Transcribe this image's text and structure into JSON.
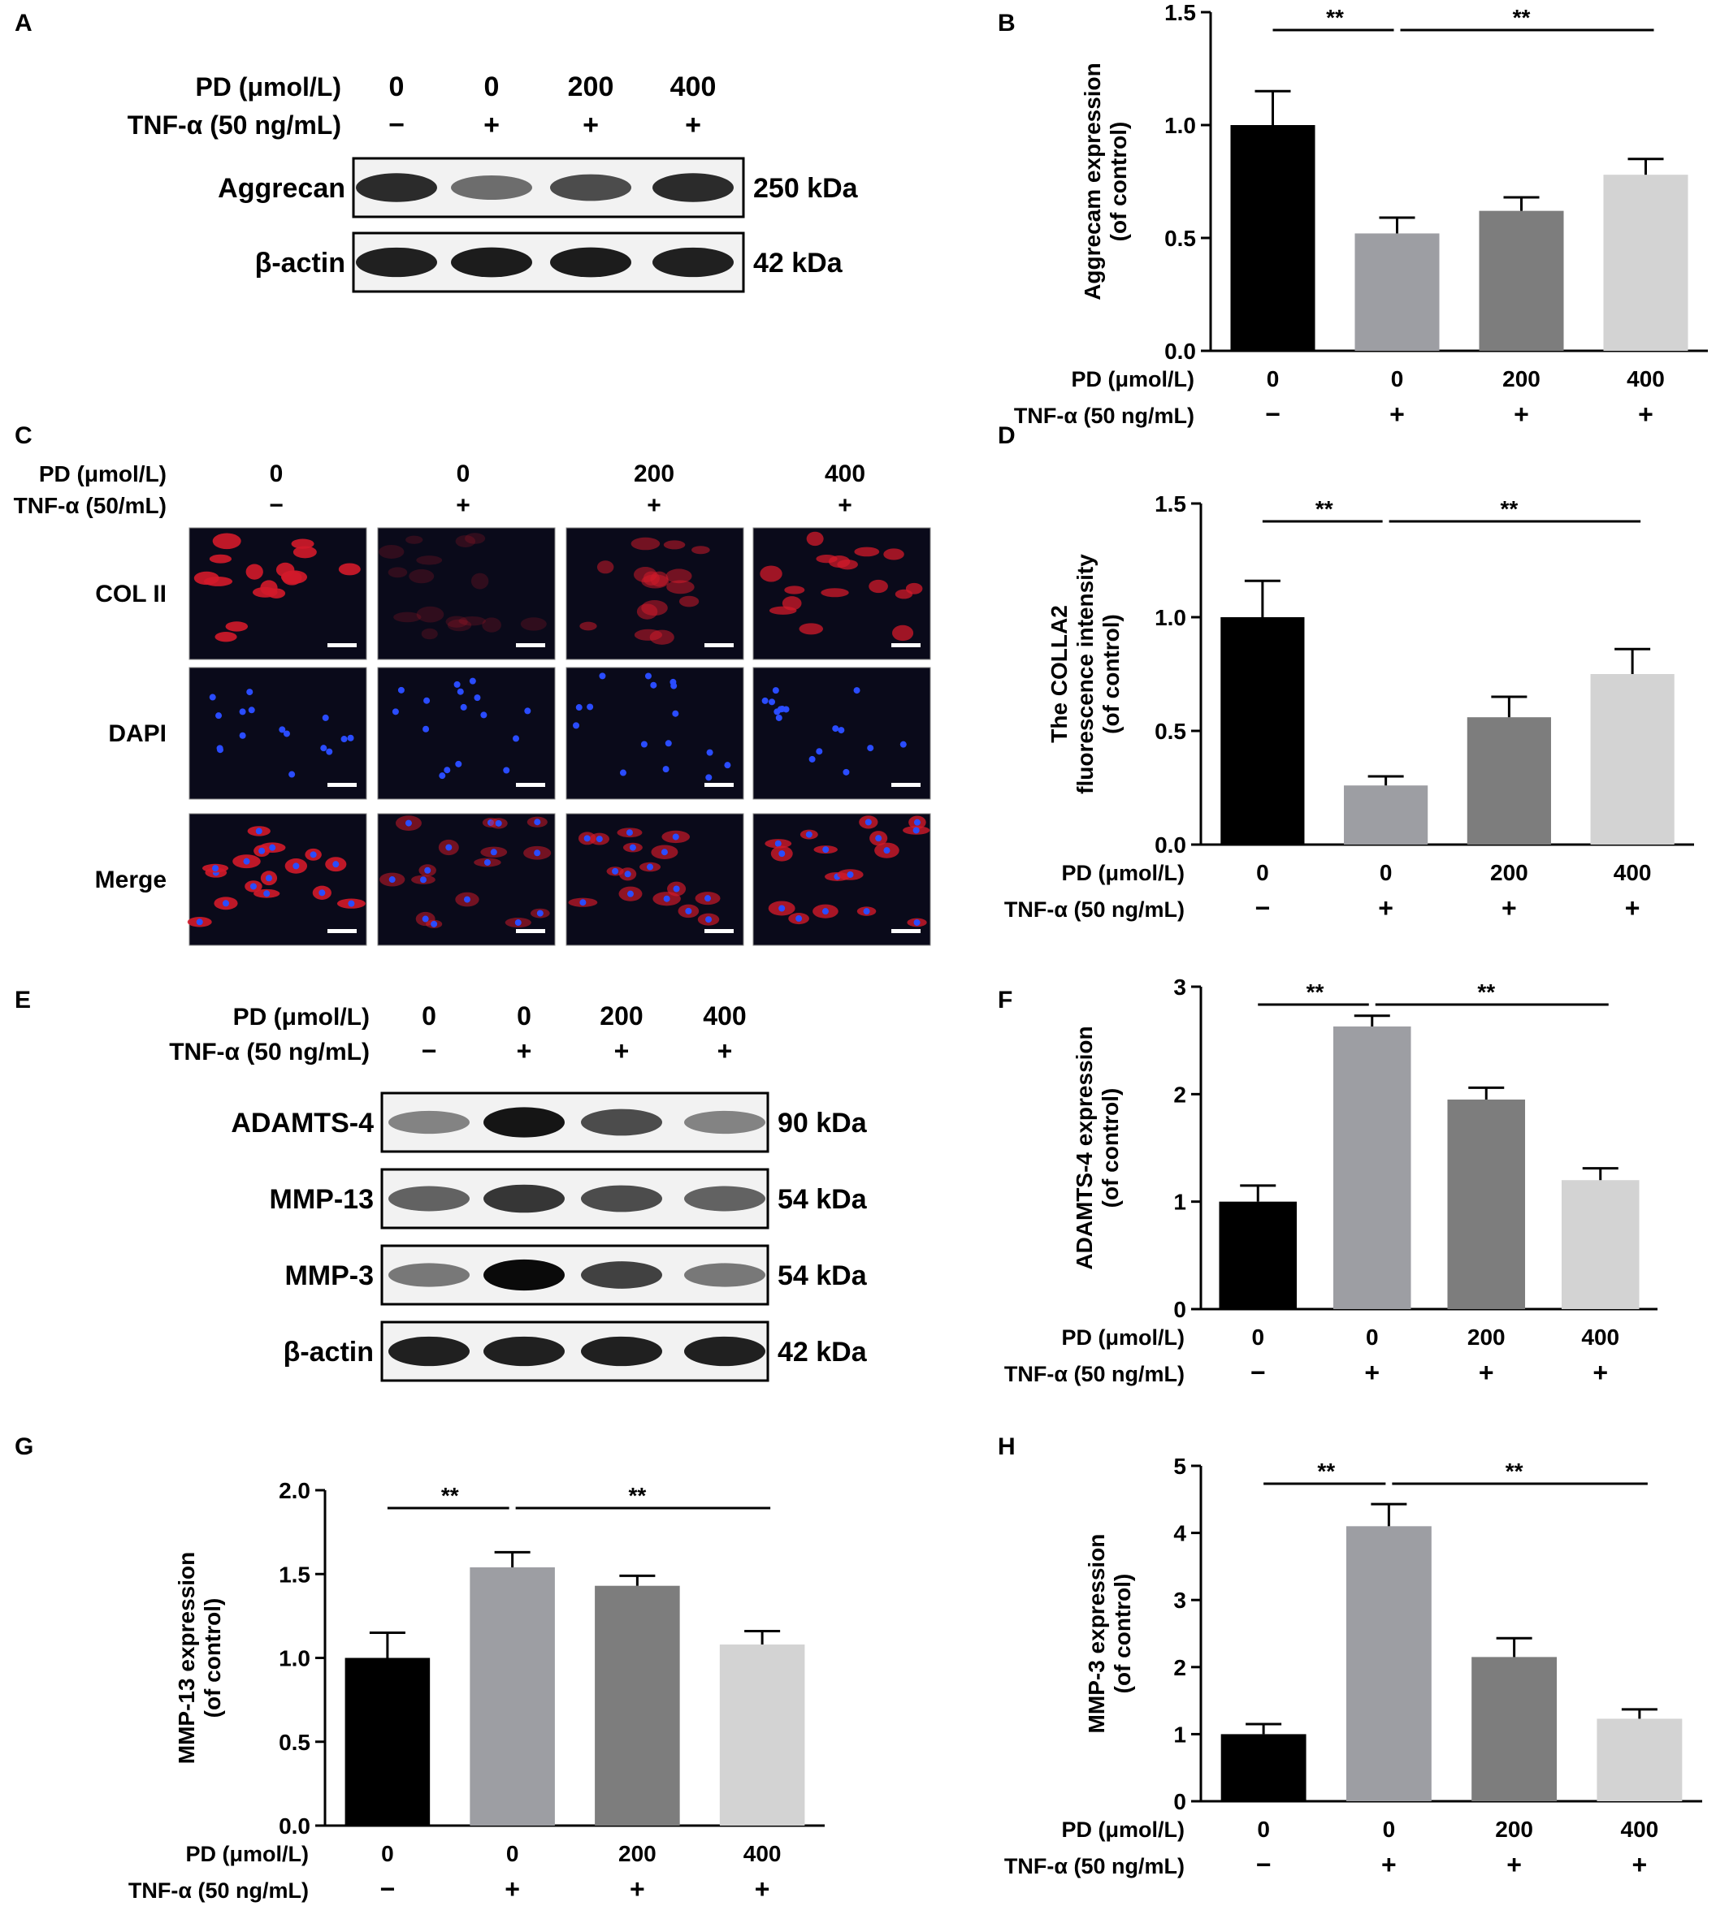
{
  "panel_letters": [
    "A",
    "B",
    "C",
    "D",
    "E",
    "F",
    "G",
    "H"
  ],
  "conditions": {
    "pd_label": "PD (μmol/L)",
    "tnf_label": "TNF-α (50 ng/mL)",
    "tnf_label_c": "TNF-α (50/mL)",
    "pd_values": [
      "0",
      "0",
      "200",
      "400"
    ],
    "tnf_values": [
      "−",
      "+",
      "+",
      "+"
    ]
  },
  "blot_A": {
    "rows": [
      {
        "label": "Aggrecan",
        "kda": "250 kDa",
        "intensity": [
          0.85,
          0.55,
          0.7,
          0.85
        ]
      },
      {
        "label": "β-actin",
        "kda": "42 kDa",
        "intensity": [
          0.9,
          0.92,
          0.92,
          0.9
        ]
      }
    ]
  },
  "blot_E": {
    "rows": [
      {
        "label": "ADAMTS-4",
        "kda": "90 kDa",
        "intensity": [
          0.45,
          0.95,
          0.7,
          0.45
        ]
      },
      {
        "label": "MMP-13",
        "kda": "54 kDa",
        "intensity": [
          0.6,
          0.8,
          0.7,
          0.6
        ]
      },
      {
        "label": "MMP-3",
        "kda": "54 kDa",
        "intensity": [
          0.5,
          1.0,
          0.75,
          0.5
        ]
      },
      {
        "label": "β-actin",
        "kda": "42 kDa",
        "intensity": [
          0.9,
          0.9,
          0.9,
          0.9
        ]
      }
    ]
  },
  "micro_C": {
    "row_labels": [
      "COL II",
      "DAPI",
      "Merge"
    ]
  },
  "chart_data": [
    {
      "panel": "B",
      "type": "bar",
      "categories": [
        "0",
        "0",
        "200",
        "400"
      ],
      "values": [
        1.0,
        0.52,
        0.62,
        0.78
      ],
      "errors": [
        0.15,
        0.07,
        0.06,
        0.07
      ],
      "ylabel": [
        "Aggrecam expression",
        "(of control)"
      ],
      "ylim": [
        0,
        1.5
      ],
      "yticks": [
        "0.0",
        "0.5",
        "1.0",
        "1.5"
      ],
      "sig": [
        "**",
        "**"
      ],
      "colors": [
        "#000000",
        "#9d9ea3",
        "#7d7d7d",
        "#d3d3d3"
      ]
    },
    {
      "panel": "D",
      "type": "bar",
      "categories": [
        "0",
        "0",
        "200",
        "400"
      ],
      "values": [
        1.0,
        0.26,
        0.56,
        0.75
      ],
      "errors": [
        0.16,
        0.04,
        0.09,
        0.11
      ],
      "ylabel": [
        "The COLLA2",
        "fluorescence intensity",
        "(of control)"
      ],
      "ylim": [
        0,
        1.5
      ],
      "yticks": [
        "0.0",
        "0.5",
        "1.0",
        "1.5"
      ],
      "sig": [
        "**",
        "**"
      ],
      "colors": [
        "#000000",
        "#9d9ea3",
        "#7d7d7d",
        "#d3d3d3"
      ]
    },
    {
      "panel": "F",
      "type": "bar",
      "categories": [
        "0",
        "0",
        "200",
        "400"
      ],
      "values": [
        1.0,
        2.63,
        1.95,
        1.2
      ],
      "errors": [
        0.15,
        0.1,
        0.11,
        0.11
      ],
      "ylabel": [
        "ADAMTS-4 expression",
        "(of control)"
      ],
      "ylim": [
        0,
        3
      ],
      "yticks": [
        "0",
        "1",
        "2",
        "3"
      ],
      "sig": [
        "**",
        "**"
      ],
      "colors": [
        "#000000",
        "#9d9ea3",
        "#7d7d7d",
        "#d3d3d3"
      ]
    },
    {
      "panel": "G",
      "type": "bar",
      "categories": [
        "0",
        "0",
        "200",
        "400"
      ],
      "values": [
        1.0,
        1.54,
        1.43,
        1.08
      ],
      "errors": [
        0.15,
        0.09,
        0.06,
        0.08
      ],
      "ylabel": [
        "MMP-13 expression",
        "(of control)"
      ],
      "ylim": [
        0,
        2
      ],
      "yticks": [
        "0.0",
        "0.5",
        "1.0",
        "1.5",
        "2.0"
      ],
      "sig": [
        "**",
        "**"
      ],
      "colors": [
        "#000000",
        "#9d9ea3",
        "#7d7d7d",
        "#d3d3d3"
      ]
    },
    {
      "panel": "H",
      "type": "bar",
      "categories": [
        "0",
        "0",
        "200",
        "400"
      ],
      "values": [
        1.0,
        4.1,
        2.15,
        1.23
      ],
      "errors": [
        0.15,
        0.33,
        0.28,
        0.14
      ],
      "ylabel": [
        "MMP-3 expression",
        "(of control)"
      ],
      "ylim": [
        0,
        5
      ],
      "yticks": [
        "0",
        "1",
        "2",
        "3",
        "4",
        "5"
      ],
      "sig": [
        "**",
        "**"
      ],
      "colors": [
        "#000000",
        "#9d9ea3",
        "#7d7d7d",
        "#d3d3d3"
      ]
    }
  ]
}
